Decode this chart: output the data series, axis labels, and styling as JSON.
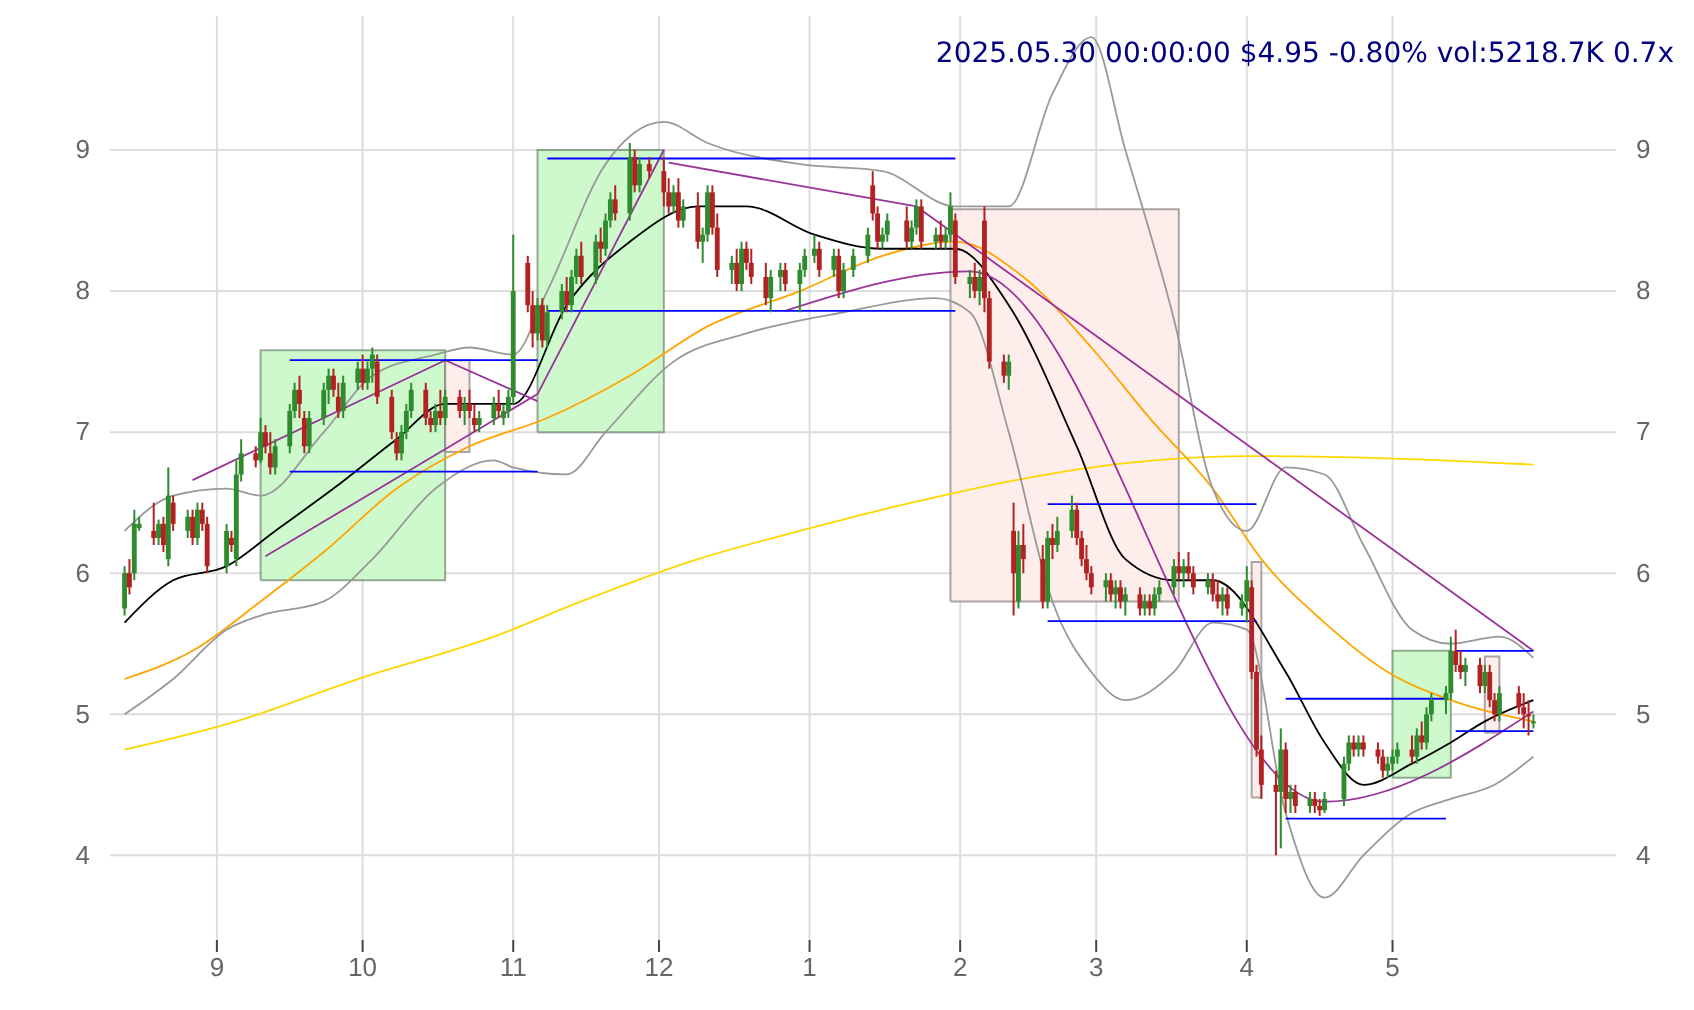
{
  "chart_data": {
    "type": "candlestick",
    "title": "2025.05.30 00:00:00 $4.95 -0.80% vol:5218.7K 0.7x",
    "xlim": [
      "2024-08-10",
      "2025-06-16"
    ],
    "xticks": [
      {
        "value": "2024-09",
        "label": "9"
      },
      {
        "value": "2024-10",
        "label": "10"
      },
      {
        "value": "2024-11",
        "label": "11"
      },
      {
        "value": "2024-12",
        "label": "12"
      },
      {
        "value": "2025-01",
        "label": "1"
      },
      {
        "value": "2025-02",
        "label": "2"
      },
      {
        "value": "2025-03",
        "label": "3"
      },
      {
        "value": "2025-04",
        "label": "4"
      },
      {
        "value": "2025-05",
        "label": "5"
      }
    ],
    "ylim": [
      3.4,
      9.95
    ],
    "yticks": [
      4,
      5,
      6,
      7,
      8,
      9
    ],
    "y2lim": [
      3.4,
      9.95
    ],
    "y2ticks": [
      4,
      5,
      6,
      7,
      8,
      9
    ],
    "grid": true,
    "series": [
      {
        "type": "area",
        "color": "#c8f8c8",
        "x": [
          "2024-09-10",
          "2024-09-10",
          "2024-10-18",
          "2024-10-18",
          "2024-09-10"
        ],
        "values": [
          5.95,
          7.58,
          7.58,
          5.95,
          5.95
        ]
      },
      {
        "type": "area",
        "color": "#fdecea",
        "x": [
          "2024-10-18",
          "2024-10-18",
          "2024-10-23",
          "2024-10-23",
          "2024-10-18"
        ],
        "values": [
          6.86,
          7.51,
          7.51,
          6.86,
          6.86
        ]
      },
      {
        "type": "area",
        "color": "#c8f8c8",
        "x": [
          "2024-11-06",
          "2024-11-06",
          "2024-12-02",
          "2024-12-02",
          "2024-11-06"
        ],
        "values": [
          7.0,
          9.0,
          9.0,
          7.0,
          7.0
        ]
      },
      {
        "type": "area",
        "color": "#fdecea",
        "x": [
          "2025-01-30",
          "2025-01-30",
          "2025-03-18",
          "2025-03-18",
          "2025-01-30"
        ],
        "values": [
          5.8,
          8.58,
          8.58,
          5.8,
          5.8
        ]
      },
      {
        "type": "area",
        "color": "#fdecea",
        "x": [
          "2025-04-02",
          "2025-04-02",
          "2025-04-04",
          "2025-04-04",
          "2025-04-02"
        ],
        "values": [
          4.41,
          6.08,
          6.08,
          4.41,
          4.41
        ]
      },
      {
        "type": "area",
        "color": "#c8f8c8",
        "x": [
          "2025-05-01",
          "2025-05-01",
          "2025-05-13",
          "2025-05-13",
          "2025-05-01"
        ],
        "values": [
          4.55,
          5.45,
          5.45,
          4.55,
          4.55
        ]
      },
      {
        "type": "area",
        "color": "#fdecea",
        "x": [
          "2025-05-20",
          "2025-05-20",
          "2025-05-23",
          "2025-05-23",
          "2025-05-20"
        ],
        "values": [
          4.87,
          5.41,
          5.41,
          4.87,
          4.87
        ]
      },
      {
        "type": "line",
        "color": "#ffd700",
        "x": [
          "2024-08-13",
          "2024-09-05",
          "2024-09-30",
          "2024-10-28",
          "2024-11-15",
          "2024-12-09",
          "2024-12-30",
          "2025-01-22",
          "2025-02-11",
          "2025-03-07",
          "2025-04-01",
          "2025-04-25",
          "2025-05-30"
        ],
        "values": [
          4.75,
          4.95,
          5.25,
          5.55,
          5.8,
          6.1,
          6.3,
          6.5,
          6.65,
          6.78,
          6.83,
          6.82,
          6.77
        ]
      },
      {
        "type": "line",
        "color": "#ffa500",
        "x": [
          "2024-08-13",
          "2024-08-27",
          "2024-09-10",
          "2024-09-23",
          "2024-10-08",
          "2024-10-23",
          "2024-11-08",
          "2024-11-25",
          "2024-12-11",
          "2024-12-30",
          "2025-01-16",
          "2025-01-31",
          "2025-02-14",
          "2025-02-28",
          "2025-03-12",
          "2025-03-25",
          "2025-04-04",
          "2025-04-17",
          "2025-04-30",
          "2025-05-13",
          "2025-05-30"
        ],
        "values": [
          5.25,
          5.45,
          5.8,
          6.15,
          6.6,
          6.9,
          7.1,
          7.4,
          7.75,
          8.0,
          8.25,
          8.35,
          8.1,
          7.6,
          7.1,
          6.6,
          6.1,
          5.65,
          5.3,
          5.1,
          4.95
        ]
      },
      {
        "type": "line",
        "color": "#999999",
        "x": [
          "2024-08-13",
          "2024-08-23",
          "2024-09-03",
          "2024-09-10",
          "2024-09-23",
          "2024-10-03",
          "2024-10-16",
          "2024-10-23",
          "2024-11-01",
          "2024-11-08",
          "2024-11-20",
          "2024-12-02",
          "2024-12-11",
          "2024-12-30",
          "2025-01-16",
          "2025-01-31",
          "2025-02-11",
          "2025-02-20",
          "2025-02-28",
          "2025-03-07",
          "2025-03-17",
          "2025-03-25",
          "2025-04-01",
          "2025-04-09",
          "2025-04-17",
          "2025-04-25",
          "2025-05-05",
          "2025-05-13",
          "2025-05-23",
          "2025-05-30"
        ],
        "values": [
          6.3,
          6.55,
          6.6,
          6.55,
          7.0,
          7.4,
          7.55,
          7.6,
          7.55,
          8.0,
          8.9,
          9.2,
          9.05,
          8.9,
          8.85,
          8.6,
          8.6,
          9.4,
          9.8,
          9.0,
          7.8,
          6.6,
          6.3,
          6.75,
          6.7,
          6.2,
          5.6,
          5.5,
          5.55,
          5.4
        ]
      },
      {
        "type": "line",
        "color": "#999999",
        "x": [
          "2024-08-13",
          "2024-08-23",
          "2024-09-03",
          "2024-09-10",
          "2024-09-23",
          "2024-10-03",
          "2024-10-16",
          "2024-10-28",
          "2024-11-01",
          "2024-11-12",
          "2024-11-20",
          "2024-12-04",
          "2024-12-19",
          "2025-01-08",
          "2025-01-27",
          "2025-02-03",
          "2025-02-11",
          "2025-02-20",
          "2025-02-28",
          "2025-03-07",
          "2025-03-17",
          "2025-03-25",
          "2025-04-01",
          "2025-04-09",
          "2025-04-17",
          "2025-04-25",
          "2025-05-05",
          "2025-05-13",
          "2025-05-22",
          "2025-05-30"
        ],
        "values": [
          5.0,
          5.25,
          5.6,
          5.7,
          5.8,
          6.1,
          6.6,
          6.8,
          6.75,
          6.7,
          7.0,
          7.5,
          7.7,
          7.85,
          7.95,
          7.85,
          7.0,
          5.8,
          5.3,
          5.1,
          5.3,
          5.65,
          5.6,
          4.3,
          3.7,
          4.0,
          4.3,
          4.4,
          4.5,
          4.7
        ]
      },
      {
        "type": "line",
        "color": "#000000",
        "x": [
          "2024-08-13",
          "2024-08-23",
          "2024-09-03",
          "2024-09-13",
          "2024-09-25",
          "2024-10-08",
          "2024-10-18",
          "2024-11-01",
          "2024-11-12",
          "2024-11-25",
          "2024-12-09",
          "2024-12-19",
          "2025-01-02",
          "2025-01-16",
          "2025-01-31",
          "2025-02-11",
          "2025-02-25",
          "2025-03-07",
          "2025-03-17",
          "2025-03-25",
          "2025-04-09",
          "2025-04-17",
          "2025-04-25",
          "2025-05-05",
          "2025-05-13",
          "2025-05-20",
          "2025-05-30"
        ],
        "values": [
          5.65,
          5.95,
          6.05,
          6.3,
          6.6,
          6.95,
          7.2,
          7.2,
          7.9,
          8.35,
          8.6,
          8.6,
          8.4,
          8.3,
          8.3,
          7.9,
          6.9,
          6.1,
          5.95,
          5.95,
          5.3,
          4.8,
          4.5,
          4.65,
          4.8,
          4.95,
          5.1
        ]
      },
      {
        "type": "line",
        "color": "#993399",
        "x": [
          "2024-08-27",
          "2024-10-18",
          "2024-11-06"
        ],
        "values": [
          6.66,
          7.51,
          7.22
        ]
      },
      {
        "type": "line",
        "color": "#993399",
        "x": [
          "2024-09-11",
          "2024-11-06",
          "2024-12-02"
        ],
        "values": [
          6.12,
          7.27,
          9.0
        ]
      },
      {
        "type": "line",
        "color": "#993399",
        "x": [
          "2024-12-03",
          "2025-01-23",
          "2025-05-30"
        ],
        "values": [
          8.91,
          8.6,
          5.45
        ]
      },
      {
        "type": "line",
        "color": "#993399",
        "x": [
          "2024-12-27",
          "2025-02-03",
          "2025-04-17",
          "2025-05-30"
        ],
        "values": [
          7.86,
          8.14,
          4.38,
          5.02
        ]
      },
      {
        "type": "line",
        "color": "#0000ff",
        "x": [
          "2024-09-16",
          "2024-11-06"
        ],
        "values": [
          7.51,
          7.51
        ]
      },
      {
        "type": "line",
        "color": "#0000ff",
        "x": [
          "2024-09-16",
          "2024-11-06"
        ],
        "values": [
          6.72,
          6.72
        ]
      },
      {
        "type": "line",
        "color": "#0000ff",
        "x": [
          "2024-11-08",
          "2025-01-31"
        ],
        "values": [
          8.94,
          8.94
        ]
      },
      {
        "type": "line",
        "color": "#0000ff",
        "x": [
          "2024-11-08",
          "2025-01-31"
        ],
        "values": [
          7.86,
          7.86
        ]
      },
      {
        "type": "line",
        "color": "#0000ff",
        "x": [
          "2025-02-19",
          "2025-04-03"
        ],
        "values": [
          6.49,
          6.49
        ]
      },
      {
        "type": "line",
        "color": "#0000ff",
        "x": [
          "2025-02-19",
          "2025-04-03"
        ],
        "values": [
          5.66,
          5.66
        ]
      },
      {
        "type": "line",
        "color": "#0000ff",
        "x": [
          "2025-04-09",
          "2025-05-12"
        ],
        "values": [
          5.11,
          5.11
        ]
      },
      {
        "type": "line",
        "color": "#0000ff",
        "x": [
          "2025-04-09",
          "2025-05-12"
        ],
        "values": [
          4.26,
          4.26
        ]
      },
      {
        "type": "line",
        "color": "#0000ff",
        "x": [
          "2025-05-14",
          "2025-05-30"
        ],
        "values": [
          5.45,
          5.45
        ]
      },
      {
        "type": "line",
        "color": "#0000ff",
        "x": [
          "2025-05-14",
          "2025-05-30"
        ],
        "values": [
          4.88,
          4.88
        ]
      },
      {
        "color": "#2e8b2e",
        "x": [
          "2024-08-13",
          "2024-08-15",
          "2024-08-16",
          "2024-08-20",
          "2024-08-22",
          "2024-08-26",
          "2024-08-28",
          "2024-09-03",
          "2024-09-05",
          "2024-09-06",
          "2024-09-10",
          "2024-09-13",
          "2024-09-16",
          "2024-09-17",
          "2024-09-20",
          "2024-09-23",
          "2024-09-24",
          "2024-09-27",
          "2024-09-30",
          "2024-10-02",
          "2024-10-03",
          "2024-10-09",
          "2024-10-10",
          "2024-10-11",
          "2024-10-16",
          "2024-10-18",
          "2024-10-22",
          "2024-10-25",
          "2024-10-28",
          "2024-10-30",
          "2024-10-31",
          "2024-11-01",
          "2024-11-06",
          "2024-11-08",
          "2024-11-11",
          "2024-11-13",
          "2024-11-14",
          "2024-11-18",
          "2024-11-20",
          "2024-11-21",
          "2024-11-25",
          "2024-11-27",
          "2024-12-04",
          "2024-12-06",
          "2024-12-10",
          "2024-12-11",
          "2024-12-16",
          "2024-12-18",
          "2024-12-24",
          "2024-12-26",
          "2024-12-30",
          "2024-12-31",
          "2025-01-02",
          "2025-01-06",
          "2025-01-08",
          "2025-01-10",
          "2025-01-13",
          "2025-01-16",
          "2025-01-17",
          "2025-01-22",
          "2025-01-23",
          "2025-01-27",
          "2025-01-29",
          "2025-01-30",
          "2025-02-03",
          "2025-02-05",
          "2025-02-11",
          "2025-02-13",
          "2025-02-19",
          "2025-02-21",
          "2025-02-24",
          "2025-03-03",
          "2025-03-05",
          "2025-03-07",
          "2025-03-11",
          "2025-03-13",
          "2025-03-14",
          "2025-03-17",
          "2025-03-19",
          "2025-03-24",
          "2025-03-27",
          "2025-03-31",
          "2025-04-01",
          "2025-04-08",
          "2025-04-10",
          "2025-04-14",
          "2025-04-17",
          "2025-04-21",
          "2025-04-22",
          "2025-04-24",
          "2025-04-30",
          "2025-05-01",
          "2025-05-02",
          "2025-05-06",
          "2025-05-08",
          "2025-05-09",
          "2025-05-12",
          "2025-05-13",
          "2025-05-16",
          "2025-05-20",
          "2025-05-23",
          "2025-05-30"
        ],
        "ohlc": [
          [
            5.75,
            6.05,
            5.7,
            6.0
          ],
          [
            6.0,
            6.45,
            5.95,
            6.35
          ],
          [
            6.32,
            6.4,
            6.3,
            6.35
          ],
          [
            6.25,
            6.38,
            6.2,
            6.35
          ],
          [
            6.1,
            6.75,
            6.05,
            6.55
          ],
          [
            6.3,
            6.45,
            6.25,
            6.4
          ],
          [
            6.25,
            6.5,
            6.2,
            6.45
          ],
          [
            6.05,
            6.35,
            6.0,
            6.3
          ],
          [
            6.1,
            6.8,
            6.05,
            6.7
          ],
          [
            6.7,
            6.95,
            6.65,
            6.85
          ],
          [
            6.8,
            7.1,
            6.78,
            7.0
          ],
          [
            6.75,
            6.95,
            6.7,
            6.9
          ],
          [
            6.9,
            7.2,
            6.85,
            7.15
          ],
          [
            7.15,
            7.35,
            7.1,
            7.3
          ],
          [
            6.9,
            7.15,
            6.85,
            7.1
          ],
          [
            7.1,
            7.35,
            7.05,
            7.3
          ],
          [
            7.3,
            7.45,
            7.2,
            7.4
          ],
          [
            7.15,
            7.4,
            7.1,
            7.35
          ],
          [
            7.35,
            7.5,
            7.3,
            7.45
          ],
          [
            7.35,
            7.5,
            7.3,
            7.45
          ],
          [
            7.45,
            7.6,
            7.35,
            7.55
          ],
          [
            6.85,
            7.05,
            6.8,
            7.0
          ],
          [
            7.0,
            7.2,
            6.95,
            7.15
          ],
          [
            7.15,
            7.35,
            7.1,
            7.3
          ],
          [
            7.05,
            7.2,
            7.0,
            7.15
          ],
          [
            7.1,
            7.3,
            7.05,
            7.25
          ],
          [
            7.15,
            7.25,
            7.05,
            7.2
          ],
          [
            7.05,
            7.15,
            7.0,
            7.1
          ],
          [
            7.1,
            7.25,
            7.05,
            7.2
          ],
          [
            7.1,
            7.2,
            7.05,
            7.15
          ],
          [
            7.15,
            7.3,
            7.1,
            7.25
          ],
          [
            7.25,
            8.4,
            7.2,
            8.0
          ],
          [
            7.7,
            7.95,
            7.65,
            7.9
          ],
          [
            7.65,
            7.9,
            7.6,
            7.85
          ],
          [
            7.85,
            8.05,
            7.8,
            8.0
          ],
          [
            7.9,
            8.15,
            7.85,
            8.1
          ],
          [
            8.1,
            8.3,
            8.05,
            8.25
          ],
          [
            8.1,
            8.4,
            8.05,
            8.35
          ],
          [
            8.3,
            8.55,
            8.25,
            8.5
          ],
          [
            8.5,
            8.7,
            8.45,
            8.65
          ],
          [
            8.55,
            9.05,
            8.5,
            8.95
          ],
          [
            8.75,
            8.95,
            8.7,
            8.9
          ],
          [
            8.6,
            8.75,
            8.55,
            8.7
          ],
          [
            8.5,
            8.65,
            8.45,
            8.6
          ],
          [
            8.35,
            8.45,
            8.2,
            8.4
          ],
          [
            8.4,
            8.75,
            8.35,
            8.7
          ],
          [
            8.15,
            8.25,
            8.05,
            8.2
          ],
          [
            8.05,
            8.35,
            8.0,
            8.3
          ],
          [
            7.95,
            8.15,
            7.85,
            8.1
          ],
          [
            8.1,
            8.2,
            8.0,
            8.15
          ],
          [
            8.05,
            8.2,
            7.85,
            8.15
          ],
          [
            8.15,
            8.3,
            8.1,
            8.25
          ],
          [
            8.25,
            8.4,
            8.2,
            8.3
          ],
          [
            8.15,
            8.3,
            8.1,
            8.25
          ],
          [
            8.0,
            8.2,
            7.95,
            8.15
          ],
          [
            8.15,
            8.3,
            8.1,
            8.25
          ],
          [
            8.25,
            8.45,
            8.2,
            8.4
          ],
          [
            8.35,
            8.45,
            8.3,
            8.4
          ],
          [
            8.4,
            8.55,
            8.35,
            8.5
          ],
          [
            8.35,
            8.5,
            8.3,
            8.45
          ],
          [
            8.45,
            8.65,
            8.4,
            8.6
          ],
          [
            8.35,
            8.45,
            8.3,
            8.4
          ],
          [
            8.35,
            8.45,
            8.3,
            8.4
          ],
          [
            8.4,
            8.7,
            8.35,
            8.6
          ],
          [
            8.05,
            8.15,
            7.95,
            8.1
          ],
          [
            8.0,
            8.15,
            7.9,
            8.1
          ],
          [
            7.4,
            7.55,
            7.3,
            7.5
          ],
          [
            5.8,
            6.3,
            5.75,
            6.2
          ],
          [
            5.8,
            6.3,
            5.75,
            6.25
          ],
          [
            6.2,
            6.4,
            6.15,
            6.3
          ],
          [
            6.3,
            6.55,
            6.25,
            6.45
          ],
          [
            5.9,
            6.0,
            5.8,
            5.95
          ],
          [
            5.85,
            5.95,
            5.75,
            5.9
          ],
          [
            5.8,
            5.9,
            5.7,
            5.85
          ],
          [
            5.75,
            5.85,
            5.7,
            5.8
          ],
          [
            5.75,
            5.9,
            5.7,
            5.85
          ],
          [
            5.85,
            5.95,
            5.8,
            5.9
          ],
          [
            5.9,
            6.1,
            5.85,
            6.05
          ],
          [
            6.0,
            6.1,
            5.9,
            6.05
          ],
          [
            5.9,
            6.0,
            5.85,
            5.95
          ],
          [
            5.8,
            5.9,
            5.7,
            5.85
          ],
          [
            5.75,
            5.85,
            5.7,
            5.8
          ],
          [
            5.8,
            6.05,
            5.65,
            5.95
          ],
          [
            4.45,
            4.9,
            4.05,
            4.75
          ],
          [
            4.4,
            4.5,
            4.3,
            4.45
          ],
          [
            4.35,
            4.45,
            4.3,
            4.4
          ],
          [
            4.32,
            4.45,
            4.3,
            4.4
          ],
          [
            4.4,
            4.7,
            4.35,
            4.65
          ],
          [
            4.65,
            4.85,
            4.6,
            4.8
          ],
          [
            4.75,
            4.85,
            4.7,
            4.8
          ],
          [
            4.6,
            4.7,
            4.55,
            4.65
          ],
          [
            4.65,
            4.75,
            4.6,
            4.7
          ],
          [
            4.7,
            4.8,
            4.65,
            4.75
          ],
          [
            4.7,
            4.9,
            4.65,
            4.85
          ],
          [
            4.8,
            5.05,
            4.75,
            5.0
          ],
          [
            5.0,
            5.15,
            4.95,
            5.1
          ],
          [
            5.1,
            5.2,
            5.0,
            5.15
          ],
          [
            5.15,
            5.55,
            5.1,
            5.45
          ],
          [
            5.3,
            5.4,
            5.2,
            5.35
          ],
          [
            5.2,
            5.35,
            5.15,
            5.3
          ],
          [
            5.0,
            5.2,
            4.95,
            5.15
          ],
          [
            4.95,
            5.0,
            4.9,
            4.95
          ]
        ]
      },
      {
        "color": "#b22222",
        "x": [
          "2024-08-14",
          "2024-08-19",
          "2024-08-21",
          "2024-08-23",
          "2024-08-27",
          "2024-08-29",
          "2024-08-30",
          "2024-09-04",
          "2024-09-09",
          "2024-09-11",
          "2024-09-12",
          "2024-09-18",
          "2024-09-19",
          "2024-09-25",
          "2024-09-26",
          "2024-10-01",
          "2024-10-04",
          "2024-10-07",
          "2024-10-08",
          "2024-10-14",
          "2024-10-15",
          "2024-10-17",
          "2024-10-21",
          "2024-10-23",
          "2024-10-24",
          "2024-10-29",
          "2024-11-04",
          "2024-11-05",
          "2024-11-07",
          "2024-11-12",
          "2024-11-15",
          "2024-11-19",
          "2024-11-22",
          "2024-11-26",
          "2024-11-29",
          "2024-12-02",
          "2024-12-03",
          "2024-12-05",
          "2024-12-09",
          "2024-12-12",
          "2024-12-13",
          "2024-12-17",
          "2024-12-19",
          "2024-12-20",
          "2024-12-23",
          "2024-12-27",
          "2025-01-03",
          "2025-01-07",
          "2025-01-14",
          "2025-01-15",
          "2025-01-21",
          "2025-01-24",
          "2025-01-28",
          "2025-01-31",
          "2025-02-04",
          "2025-02-06",
          "2025-02-07",
          "2025-02-10",
          "2025-02-12",
          "2025-02-14",
          "2025-02-18",
          "2025-02-20",
          "2025-02-25",
          "2025-02-26",
          "2025-02-27",
          "2025-02-28",
          "2025-03-04",
          "2025-03-06",
          "2025-03-10",
          "2025-03-12",
          "2025-03-18",
          "2025-03-20",
          "2025-03-21",
          "2025-03-25",
          "2025-03-26",
          "2025-03-28",
          "2025-04-02",
          "2025-04-03",
          "2025-04-04",
          "2025-04-07",
          "2025-04-09",
          "2025-04-11",
          "2025-04-15",
          "2025-04-16",
          "2025-04-23",
          "2025-04-25",
          "2025-04-28",
          "2025-04-29",
          "2025-05-05",
          "2025-05-07",
          "2025-05-14",
          "2025-05-15",
          "2025-05-19",
          "2025-05-21",
          "2025-05-22",
          "2025-05-27",
          "2025-05-28",
          "2025-05-29"
        ],
        "ohlc": [
          [
            6.0,
            6.1,
            5.85,
            5.9
          ],
          [
            6.3,
            6.5,
            6.2,
            6.25
          ],
          [
            6.35,
            6.4,
            6.15,
            6.2
          ],
          [
            6.5,
            6.55,
            6.3,
            6.35
          ],
          [
            6.4,
            6.45,
            6.2,
            6.25
          ],
          [
            6.45,
            6.5,
            6.3,
            6.35
          ],
          [
            6.35,
            6.4,
            6.0,
            6.05
          ],
          [
            6.25,
            6.3,
            6.15,
            6.2
          ],
          [
            6.85,
            6.9,
            6.75,
            6.8
          ],
          [
            7.0,
            7.05,
            6.85,
            6.9
          ],
          [
            6.85,
            7.0,
            6.7,
            6.75
          ],
          [
            7.3,
            7.4,
            7.1,
            7.2
          ],
          [
            7.1,
            7.15,
            6.85,
            6.9
          ],
          [
            7.4,
            7.45,
            7.25,
            7.3
          ],
          [
            7.25,
            7.35,
            7.1,
            7.15
          ],
          [
            7.45,
            7.55,
            7.3,
            7.35
          ],
          [
            7.5,
            7.55,
            7.2,
            7.25
          ],
          [
            7.25,
            7.3,
            6.95,
            7.0
          ],
          [
            6.95,
            7.0,
            6.8,
            6.85
          ],
          [
            7.3,
            7.35,
            7.05,
            7.1
          ],
          [
            7.1,
            7.15,
            7.0,
            7.05
          ],
          [
            7.15,
            7.3,
            7.05,
            7.1
          ],
          [
            7.25,
            7.3,
            7.1,
            7.15
          ],
          [
            7.2,
            7.3,
            7.1,
            7.15
          ],
          [
            7.1,
            7.2,
            7.0,
            7.05
          ],
          [
            7.2,
            7.3,
            7.1,
            7.15
          ],
          [
            8.2,
            8.25,
            7.85,
            7.9
          ],
          [
            7.9,
            8.0,
            7.6,
            7.7
          ],
          [
            7.9,
            7.95,
            7.6,
            7.65
          ],
          [
            8.0,
            8.1,
            7.85,
            7.9
          ],
          [
            8.25,
            8.35,
            8.05,
            8.1
          ],
          [
            8.35,
            8.45,
            8.2,
            8.3
          ],
          [
            8.65,
            8.75,
            8.5,
            8.55
          ],
          [
            8.95,
            9.0,
            8.7,
            8.75
          ],
          [
            8.9,
            8.95,
            8.8,
            8.85
          ],
          [
            8.85,
            8.95,
            8.6,
            8.7
          ],
          [
            8.7,
            8.8,
            8.55,
            8.6
          ],
          [
            8.7,
            8.8,
            8.45,
            8.5
          ],
          [
            8.6,
            8.7,
            8.3,
            8.35
          ],
          [
            8.7,
            8.75,
            8.4,
            8.45
          ],
          [
            8.45,
            8.55,
            8.1,
            8.15
          ],
          [
            8.2,
            8.3,
            8.0,
            8.05
          ],
          [
            8.3,
            8.35,
            8.15,
            8.2
          ],
          [
            8.2,
            8.3,
            8.05,
            8.1
          ],
          [
            8.1,
            8.2,
            7.9,
            7.95
          ],
          [
            8.15,
            8.2,
            8.0,
            8.05
          ],
          [
            8.3,
            8.35,
            8.1,
            8.15
          ],
          [
            8.25,
            8.3,
            7.95,
            8.0
          ],
          [
            8.75,
            8.85,
            8.5,
            8.55
          ],
          [
            8.55,
            8.6,
            8.3,
            8.35
          ],
          [
            8.5,
            8.6,
            8.3,
            8.35
          ],
          [
            8.6,
            8.65,
            8.3,
            8.35
          ],
          [
            8.4,
            8.5,
            8.3,
            8.35
          ],
          [
            8.5,
            8.55,
            8.05,
            8.1
          ],
          [
            8.1,
            8.2,
            7.95,
            8.0
          ],
          [
            8.5,
            8.6,
            7.85,
            7.95
          ],
          [
            7.95,
            8.0,
            7.45,
            7.5
          ],
          [
            7.5,
            7.55,
            7.35,
            7.4
          ],
          [
            6.3,
            6.5,
            5.7,
            6.0
          ],
          [
            6.2,
            6.35,
            6.0,
            6.1
          ],
          [
            6.1,
            6.2,
            5.75,
            5.8
          ],
          [
            6.25,
            6.35,
            6.1,
            6.2
          ],
          [
            6.45,
            6.5,
            6.2,
            6.25
          ],
          [
            6.25,
            6.3,
            6.05,
            6.1
          ],
          [
            6.1,
            6.2,
            5.95,
            6.0
          ],
          [
            6.0,
            6.05,
            5.85,
            5.9
          ],
          [
            5.95,
            6.0,
            5.8,
            5.85
          ],
          [
            5.9,
            5.95,
            5.75,
            5.8
          ],
          [
            5.85,
            5.9,
            5.7,
            5.75
          ],
          [
            5.8,
            5.85,
            5.7,
            5.75
          ],
          [
            6.05,
            6.15,
            5.95,
            6.0
          ],
          [
            6.05,
            6.15,
            5.95,
            6.0
          ],
          [
            6.0,
            6.05,
            5.85,
            5.9
          ],
          [
            5.95,
            6.0,
            5.8,
            5.85
          ],
          [
            5.85,
            5.95,
            5.75,
            5.8
          ],
          [
            5.85,
            5.9,
            5.7,
            5.75
          ],
          [
            5.9,
            5.95,
            5.25,
            5.3
          ],
          [
            5.3,
            5.35,
            4.7,
            4.75
          ],
          [
            4.75,
            4.85,
            4.4,
            4.5
          ],
          [
            4.5,
            4.6,
            4.0,
            4.45
          ],
          [
            4.75,
            4.8,
            4.3,
            4.4
          ],
          [
            4.45,
            4.5,
            4.3,
            4.35
          ],
          [
            4.4,
            4.45,
            4.3,
            4.35
          ],
          [
            4.35,
            4.4,
            4.28,
            4.32
          ],
          [
            4.8,
            4.85,
            4.7,
            4.75
          ],
          [
            4.8,
            4.85,
            4.7,
            4.75
          ],
          [
            4.75,
            4.8,
            4.65,
            4.7
          ],
          [
            4.7,
            4.75,
            4.55,
            4.6
          ],
          [
            4.75,
            4.85,
            4.65,
            4.7
          ],
          [
            4.85,
            4.95,
            4.75,
            4.8
          ],
          [
            5.45,
            5.6,
            5.3,
            5.35
          ],
          [
            5.35,
            5.45,
            5.25,
            5.3
          ],
          [
            5.35,
            5.4,
            5.15,
            5.2
          ],
          [
            5.3,
            5.35,
            5.05,
            5.1
          ],
          [
            5.1,
            5.15,
            4.95,
            5.0
          ],
          [
            5.15,
            5.2,
            5.0,
            5.05
          ],
          [
            5.05,
            5.15,
            4.9,
            5.0
          ],
          [
            5.0,
            5.1,
            4.85,
            4.99
          ]
        ]
      }
    ]
  }
}
